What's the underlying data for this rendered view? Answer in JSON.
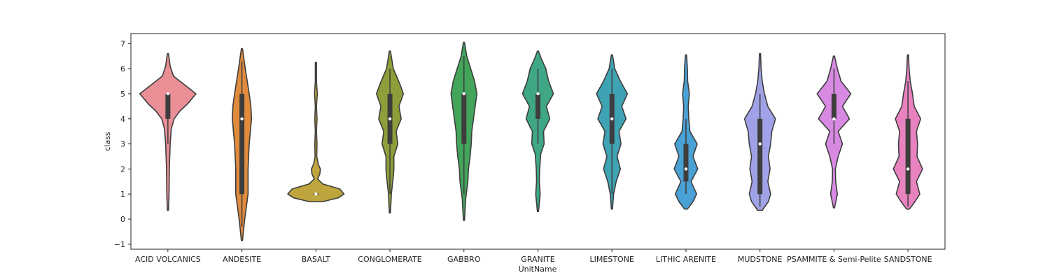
{
  "chart_data": {
    "type": "violin",
    "xlabel": "UnitName",
    "ylabel": "class",
    "ylim": [
      -1.2,
      7.4
    ],
    "yticks": [
      -1,
      0,
      1,
      2,
      3,
      4,
      5,
      6,
      7
    ],
    "grid": false,
    "categories": [
      "ACID VOLCANICS",
      "ANDESITE",
      "BASALT",
      "CONGLOMERATE",
      "GABBRO",
      "GRANITE",
      "LIMESTONE",
      "LITHIC ARENITE",
      "MUDSTONE",
      "PSAMMITE & Semi-Pelite",
      "SANDSTONE"
    ],
    "violins": [
      {
        "category": "ACID VOLCANICS",
        "color": "#ea8f96",
        "median": 5,
        "q1": 4,
        "q3": 5,
        "whisker_low": 3,
        "whisker_high": 5,
        "extent": [
          0.35,
          6.6
        ],
        "profile": [
          [
            0.35,
            0.02
          ],
          [
            1,
            0.04
          ],
          [
            2,
            0.05
          ],
          [
            3,
            0.08
          ],
          [
            3.6,
            0.12
          ],
          [
            4,
            0.22
          ],
          [
            4.3,
            0.42
          ],
          [
            4.6,
            0.7
          ],
          [
            5,
            1.0
          ],
          [
            5.35,
            0.6
          ],
          [
            5.7,
            0.2
          ],
          [
            6.1,
            0.08
          ],
          [
            6.6,
            0.02
          ]
        ]
      },
      {
        "category": "ANDESITE",
        "color": "#e08b3e",
        "median": 4,
        "q1": 1,
        "q3": 5,
        "whisker_low": -0.3,
        "whisker_high": 6.3,
        "extent": [
          -0.85,
          6.8
        ],
        "profile": [
          [
            -0.85,
            0.02
          ],
          [
            0,
            0.1
          ],
          [
            1,
            0.22
          ],
          [
            2,
            0.22
          ],
          [
            3,
            0.26
          ],
          [
            4,
            0.34
          ],
          [
            4.5,
            0.32
          ],
          [
            5,
            0.26
          ],
          [
            6,
            0.12
          ],
          [
            6.8,
            0.02
          ]
        ]
      },
      {
        "category": "BASALT",
        "color": "#bea53d",
        "median": 1,
        "q1": 1,
        "q3": 1,
        "whisker_low": 1,
        "whisker_high": 1,
        "extent": [
          0.7,
          6.25
        ],
        "profile": [
          [
            0.7,
            0.25
          ],
          [
            0.85,
            0.8
          ],
          [
            1,
            1.0
          ],
          [
            1.2,
            0.85
          ],
          [
            1.4,
            0.25
          ],
          [
            1.6,
            0.06
          ],
          [
            1.8,
            0.14
          ],
          [
            2,
            0.16
          ],
          [
            2.2,
            0.08
          ],
          [
            2.5,
            0.03
          ],
          [
            3,
            0.04
          ],
          [
            3.5,
            0.02
          ],
          [
            4,
            0.04
          ],
          [
            4.5,
            0.02
          ],
          [
            5,
            0.05
          ],
          [
            5.5,
            0.02
          ],
          [
            6.25,
            0.02
          ]
        ]
      },
      {
        "category": "CONGLOMERATE",
        "color": "#8f9e3a",
        "median": 4,
        "q1": 3,
        "q3": 5,
        "whisker_low": 1,
        "whisker_high": 6,
        "extent": [
          0.25,
          6.7
        ],
        "profile": [
          [
            0.25,
            0.02
          ],
          [
            1,
            0.05
          ],
          [
            1.7,
            0.12
          ],
          [
            2,
            0.14
          ],
          [
            2.5,
            0.14
          ],
          [
            3,
            0.28
          ],
          [
            3.5,
            0.22
          ],
          [
            4,
            0.4
          ],
          [
            4.5,
            0.32
          ],
          [
            5,
            0.48
          ],
          [
            5.4,
            0.35
          ],
          [
            6,
            0.12
          ],
          [
            6.7,
            0.02
          ]
        ]
      },
      {
        "category": "GABBRO",
        "color": "#42a55a",
        "median": 5,
        "q1": 3,
        "q3": 5,
        "whisker_low": 1,
        "whisker_high": 6.5,
        "extent": [
          -0.05,
          7.05
        ],
        "profile": [
          [
            -0.05,
            0.02
          ],
          [
            0.8,
            0.06
          ],
          [
            1.5,
            0.14
          ],
          [
            2,
            0.16
          ],
          [
            2.5,
            0.22
          ],
          [
            3,
            0.26
          ],
          [
            3.5,
            0.28
          ],
          [
            4,
            0.34
          ],
          [
            4.5,
            0.4
          ],
          [
            5,
            0.46
          ],
          [
            5.5,
            0.38
          ],
          [
            6,
            0.24
          ],
          [
            6.5,
            0.1
          ],
          [
            7.05,
            0.02
          ]
        ]
      },
      {
        "category": "GRANITE",
        "color": "#3fa686",
        "median": 5,
        "q1": 4,
        "q3": 5,
        "whisker_low": 3,
        "whisker_high": 6,
        "extent": [
          0.3,
          6.7
        ],
        "profile": [
          [
            0.3,
            0.02
          ],
          [
            1,
            0.08
          ],
          [
            1.5,
            0.05
          ],
          [
            2,
            0.06
          ],
          [
            2.6,
            0.1
          ],
          [
            3,
            0.22
          ],
          [
            3.5,
            0.2
          ],
          [
            4,
            0.42
          ],
          [
            4.5,
            0.3
          ],
          [
            5,
            0.55
          ],
          [
            5.5,
            0.38
          ],
          [
            6,
            0.28
          ],
          [
            6.4,
            0.12
          ],
          [
            6.7,
            0.02
          ]
        ]
      },
      {
        "category": "LIMESTONE",
        "color": "#3ea3b3",
        "median": 4,
        "q1": 3,
        "q3": 5,
        "whisker_low": 1,
        "whisker_high": 6,
        "extent": [
          0.4,
          6.55
        ],
        "profile": [
          [
            0.4,
            0.02
          ],
          [
            1,
            0.06
          ],
          [
            1.5,
            0.15
          ],
          [
            2,
            0.3
          ],
          [
            2.5,
            0.18
          ],
          [
            3,
            0.32
          ],
          [
            3.5,
            0.25
          ],
          [
            4,
            0.5
          ],
          [
            4.5,
            0.35
          ],
          [
            5,
            0.55
          ],
          [
            5.5,
            0.3
          ],
          [
            6,
            0.1
          ],
          [
            6.55,
            0.02
          ]
        ]
      },
      {
        "category": "LITHIC ARENITE",
        "color": "#4aa1d5",
        "median": 2,
        "q1": 1.5,
        "q3": 3,
        "whisker_low": 1,
        "whisker_high": 4,
        "extent": [
          0.4,
          6.55
        ],
        "profile": [
          [
            0.4,
            0.05
          ],
          [
            0.7,
            0.25
          ],
          [
            1,
            0.38
          ],
          [
            1.5,
            0.18
          ],
          [
            2,
            0.42
          ],
          [
            2.5,
            0.25
          ],
          [
            3,
            0.4
          ],
          [
            3.5,
            0.14
          ],
          [
            4,
            0.1
          ],
          [
            4.5,
            0.08
          ],
          [
            5,
            0.12
          ],
          [
            5.5,
            0.06
          ],
          [
            6,
            0.05
          ],
          [
            6.55,
            0.02
          ]
        ]
      },
      {
        "category": "MUDSTONE",
        "color": "#9fa2e6",
        "median": 3,
        "q1": 1,
        "q3": 4,
        "whisker_low": 0.5,
        "whisker_high": 5,
        "extent": [
          0.35,
          6.6
        ],
        "profile": [
          [
            0.35,
            0.08
          ],
          [
            0.7,
            0.3
          ],
          [
            1,
            0.38
          ],
          [
            1.5,
            0.28
          ],
          [
            2,
            0.36
          ],
          [
            2.5,
            0.3
          ],
          [
            3,
            0.38
          ],
          [
            3.5,
            0.42
          ],
          [
            4,
            0.55
          ],
          [
            4.5,
            0.28
          ],
          [
            5,
            0.16
          ],
          [
            5.5,
            0.08
          ],
          [
            6,
            0.04
          ],
          [
            6.6,
            0.02
          ]
        ]
      },
      {
        "category": "PSAMMITE & Semi-Pelite",
        "color": "#d88ae3",
        "median": 4,
        "q1": 4,
        "q3": 5,
        "whisker_low": 3,
        "whisker_high": 6,
        "extent": [
          0.45,
          6.5
        ],
        "profile": [
          [
            0.45,
            0.02
          ],
          [
            1,
            0.12
          ],
          [
            1.5,
            0.06
          ],
          [
            2,
            0.05
          ],
          [
            2.5,
            0.15
          ],
          [
            3,
            0.3
          ],
          [
            3.5,
            0.15
          ],
          [
            4,
            0.55
          ],
          [
            4.5,
            0.3
          ],
          [
            5,
            0.6
          ],
          [
            5.5,
            0.25
          ],
          [
            6,
            0.12
          ],
          [
            6.5,
            0.02
          ]
        ]
      },
      {
        "category": "SANDSTONE",
        "color": "#e883bf",
        "median": 2,
        "q1": 1,
        "q3": 4,
        "whisker_low": 0.5,
        "whisker_high": 5.5,
        "extent": [
          0.4,
          6.55
        ],
        "profile": [
          [
            0.4,
            0.05
          ],
          [
            0.7,
            0.25
          ],
          [
            1,
            0.42
          ],
          [
            1.5,
            0.3
          ],
          [
            2,
            0.52
          ],
          [
            2.5,
            0.32
          ],
          [
            3,
            0.34
          ],
          [
            3.5,
            0.3
          ],
          [
            4,
            0.45
          ],
          [
            4.5,
            0.22
          ],
          [
            5,
            0.16
          ],
          [
            5.5,
            0.08
          ],
          [
            6,
            0.04
          ],
          [
            6.55,
            0.02
          ]
        ]
      }
    ]
  }
}
